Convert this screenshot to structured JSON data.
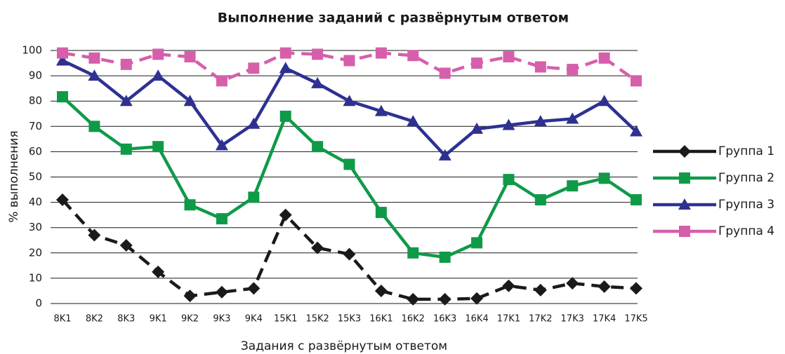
{
  "chart_data": {
    "type": "line",
    "title": "Выполнение заданий с развёрнутым ответом",
    "x_label": "Задания с развёрнутым ответом",
    "y_label": "% выполнения",
    "categories": [
      "8K1",
      "8K2",
      "8K3",
      "9K1",
      "9K2",
      "9K3",
      "9K4",
      "15K1",
      "15K2",
      "15K3",
      "16K1",
      "16K2",
      "16K3",
      "16K4",
      "17K1",
      "17K2",
      "17K3",
      "17K4",
      "17K5"
    ],
    "ylim": [
      0,
      100
    ],
    "yticks": [
      0,
      10,
      20,
      30,
      40,
      50,
      60,
      70,
      80,
      90,
      100
    ],
    "grid": true,
    "legend": "right",
    "series": [
      {
        "name": "Группа 1",
        "color": "#1a1a1a",
        "dashed": true,
        "marker": "diamond",
        "values": [
          41,
          27,
          23,
          12.5,
          3,
          4.5,
          6,
          35,
          22,
          19.5,
          5,
          1.7,
          1.7,
          2,
          7,
          5.3,
          8,
          6.7,
          6
        ]
      },
      {
        "name": "Группа 2",
        "color": "#0f9a48",
        "dashed": false,
        "marker": "square",
        "values": [
          81.7,
          70,
          61,
          62,
          39,
          33.5,
          42,
          74,
          62,
          55,
          36,
          20,
          18.3,
          24,
          49,
          41,
          46.5,
          49.5,
          41
        ]
      },
      {
        "name": "Группа 3",
        "color": "#2e3192",
        "dashed": false,
        "marker": "triangle",
        "values": [
          96,
          90,
          80,
          90,
          80,
          62.5,
          71,
          93,
          87,
          80,
          76,
          72,
          58.5,
          69,
          70.5,
          72,
          73,
          80,
          68
        ]
      },
      {
        "name": "Группа 4",
        "color": "#d65fab",
        "dashed": true,
        "marker": "square",
        "values": [
          99,
          97,
          94.5,
          98.5,
          97.5,
          88,
          93,
          99,
          98.5,
          96,
          99,
          98,
          91,
          95,
          97.5,
          93.5,
          92.5,
          97,
          88
        ]
      }
    ]
  }
}
